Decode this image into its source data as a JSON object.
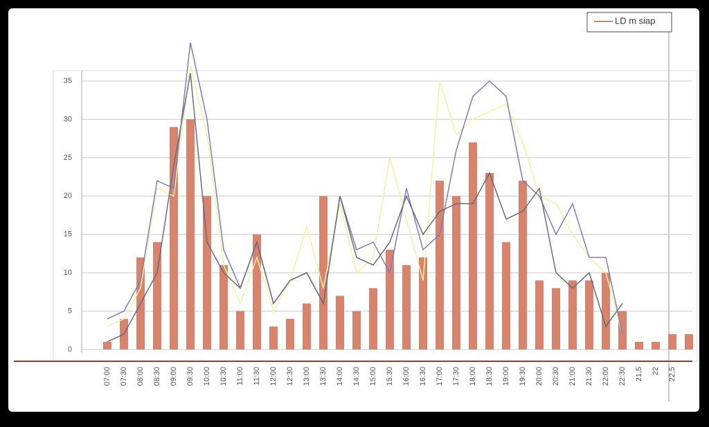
{
  "chart_data": {
    "type": "bar",
    "legend_label": "LD m siap",
    "categories": [
      "07:00",
      "07:30",
      "08:00",
      "08:30",
      "09:00",
      "09:30",
      "10:00",
      "10:30",
      "11:00",
      "11:30",
      "12:00",
      "12:30",
      "13:00",
      "13:30",
      "14:00",
      "14:30",
      "15:00",
      "15:30",
      "16:00",
      "16:30",
      "17:00",
      "17:30",
      "18:00",
      "18:30",
      "19:00",
      "19:30",
      "20:00",
      "20:30",
      "21:00",
      "21:30",
      "22:00",
      "22:30",
      "21,5",
      "22",
      "22,5",
      null
    ],
    "series": [
      {
        "name": "LD m siap",
        "type": "bar",
        "color": "#d9826c",
        "values": [
          1,
          4,
          12,
          14,
          29,
          30,
          20,
          11,
          5,
          15,
          3,
          4,
          6,
          20,
          7,
          5,
          8,
          13,
          11,
          12,
          22,
          20,
          27,
          23,
          14,
          22,
          9,
          8,
          9,
          9,
          10,
          5,
          1,
          1,
          2,
          2
        ]
      },
      {
        "type": "line",
        "color": "#f2f2a0",
        "values": [
          3,
          4,
          8,
          21,
          20,
          37,
          28,
          11,
          6,
          12,
          5,
          9,
          16,
          8,
          19,
          10,
          12,
          25,
          17,
          9,
          35,
          28,
          30,
          31,
          32,
          27,
          20,
          19,
          15,
          12,
          10,
          2,
          null,
          null,
          null,
          null
        ]
      },
      {
        "type": "line",
        "color": "#7b7bbf",
        "values": [
          4,
          5,
          9,
          22,
          21,
          40,
          30,
          13,
          8,
          14,
          6,
          9,
          10,
          6,
          20,
          13,
          14,
          10,
          21,
          13,
          15,
          26,
          33,
          35,
          33,
          22,
          20,
          15,
          19,
          12,
          12,
          2,
          null,
          null,
          null,
          null
        ]
      },
      {
        "type": "line",
        "color": "#6a6a78",
        "values": [
          1,
          2,
          6,
          10,
          24,
          36,
          14,
          10,
          8,
          14,
          6,
          9,
          10,
          6,
          20,
          12,
          11,
          14,
          20,
          15,
          18,
          19,
          19,
          23,
          17,
          18,
          21,
          10,
          8,
          10,
          3,
          6,
          null,
          null,
          null,
          null
        ]
      }
    ],
    "ylim": [
      0,
      35
    ],
    "yticks": [
      0,
      5,
      10,
      15,
      20,
      25,
      30,
      35
    ],
    "grid": true
  }
}
